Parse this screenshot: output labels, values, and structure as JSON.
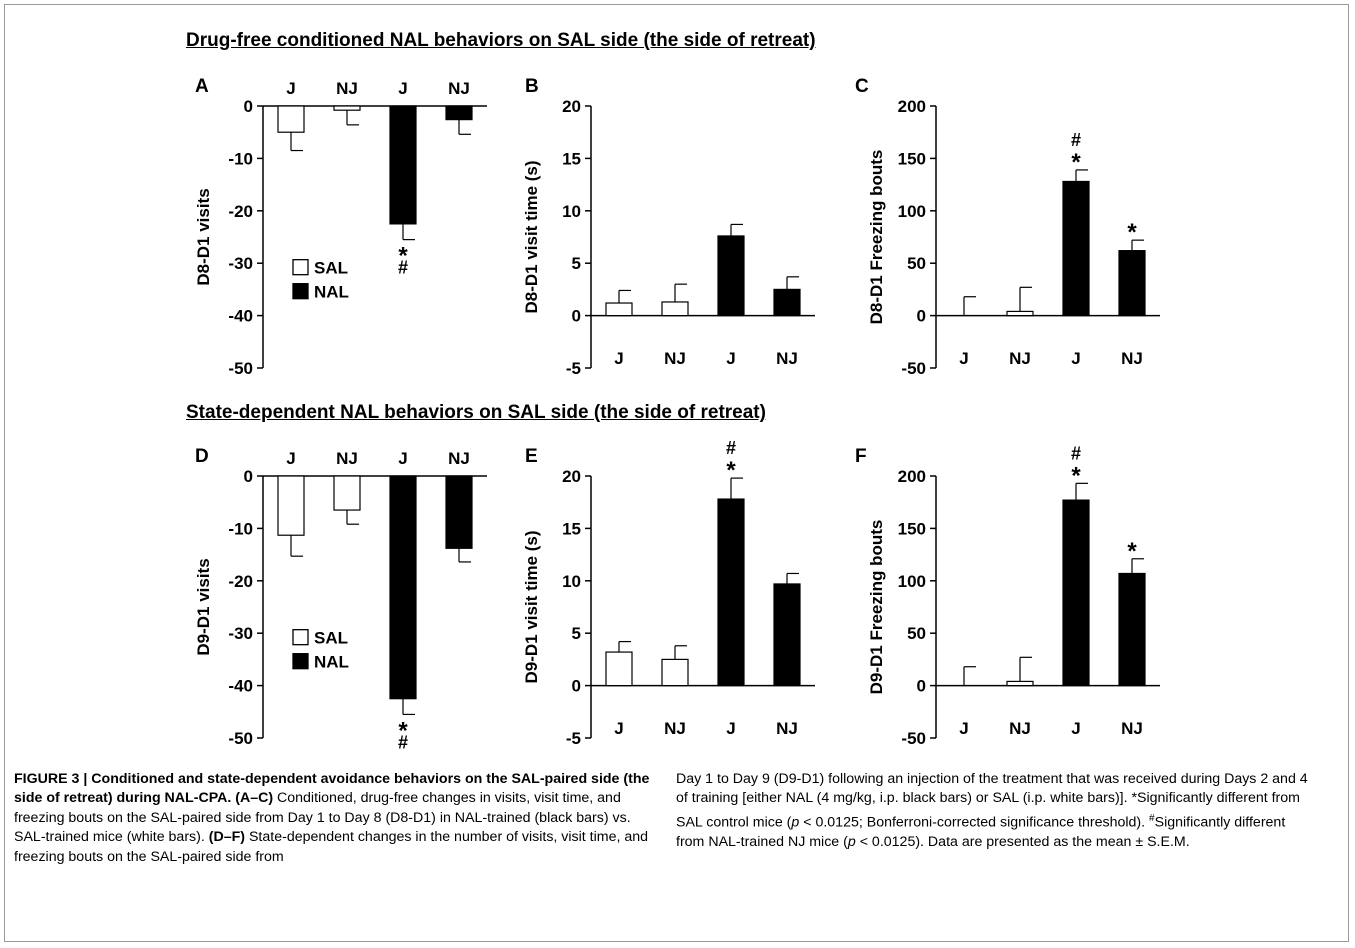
{
  "section_titles": {
    "top": "Drug-free conditioned NAL behaviors on SAL side (the side of retreat)",
    "bottom": "State-dependent NAL behaviors on SAL side (the side of retreat)"
  },
  "legend": {
    "sal": "SAL",
    "nal": "NAL"
  },
  "colors": {
    "sal": "#ffffff",
    "nal": "#000000",
    "stroke": "#000000"
  },
  "chart_data": [
    {
      "panel": "A",
      "type": "bar",
      "ylabel": "D8-D1 visits",
      "categories": [
        "J",
        "NJ",
        "J",
        "NJ"
      ],
      "groups": [
        "SAL",
        "SAL",
        "NAL",
        "NAL"
      ],
      "values": [
        -5,
        -0.8,
        -22.5,
        -2.6
      ],
      "errors": [
        3.5,
        2.8,
        3.0,
        2.8
      ],
      "ylim": [
        -50,
        0
      ],
      "yticks": [
        0,
        -10,
        -20,
        -30,
        -40,
        -50
      ],
      "category_labels_position": "top",
      "annotations": [
        "",
        "",
        "*#",
        ""
      ],
      "legend": "inside-bottom-left"
    },
    {
      "panel": "B",
      "type": "bar",
      "ylabel": "D8-D1 visit time (s)",
      "categories": [
        "J",
        "NJ",
        "J",
        "NJ"
      ],
      "groups": [
        "SAL",
        "SAL",
        "NAL",
        "NAL"
      ],
      "values": [
        1.2,
        1.3,
        7.6,
        2.5
      ],
      "errors": [
        1.2,
        1.7,
        1.1,
        1.2
      ],
      "ylim": [
        -5,
        20
      ],
      "yticks": [
        -5,
        0,
        5,
        10,
        15,
        20
      ],
      "category_labels_position": "bottom",
      "annotations": [
        "",
        "",
        "",
        ""
      ]
    },
    {
      "panel": "C",
      "type": "bar",
      "ylabel": "D8-D1 Freezing bouts",
      "categories": [
        "J",
        "NJ",
        "J",
        "NJ"
      ],
      "groups": [
        "SAL",
        "SAL",
        "NAL",
        "NAL"
      ],
      "values": [
        0,
        4,
        128,
        62
      ],
      "errors": [
        18,
        23,
        11,
        10
      ],
      "ylim": [
        -50,
        200
      ],
      "yticks": [
        -50,
        0,
        50,
        100,
        150,
        200
      ],
      "category_labels_position": "bottom",
      "annotations": [
        "",
        "",
        "#*",
        "*"
      ]
    },
    {
      "panel": "D",
      "type": "bar",
      "ylabel": "D9-D1 visits",
      "categories": [
        "J",
        "NJ",
        "J",
        "NJ"
      ],
      "groups": [
        "SAL",
        "SAL",
        "NAL",
        "NAL"
      ],
      "values": [
        -11.3,
        -6.5,
        -42.5,
        -13.8
      ],
      "errors": [
        4.0,
        2.7,
        3.0,
        2.6
      ],
      "ylim": [
        -50,
        0
      ],
      "yticks": [
        0,
        -10,
        -20,
        -30,
        -40,
        -50
      ],
      "category_labels_position": "top",
      "annotations": [
        "",
        "",
        "*#",
        ""
      ],
      "legend": "inside-bottom-left"
    },
    {
      "panel": "E",
      "type": "bar",
      "ylabel": "D9-D1 visit time (s)",
      "categories": [
        "J",
        "NJ",
        "J",
        "NJ"
      ],
      "groups": [
        "SAL",
        "SAL",
        "NAL",
        "NAL"
      ],
      "values": [
        3.2,
        2.5,
        17.8,
        9.7
      ],
      "errors": [
        1.0,
        1.3,
        2.0,
        1.0
      ],
      "ylim": [
        -5,
        20
      ],
      "yticks": [
        -5,
        0,
        5,
        10,
        15,
        20
      ],
      "category_labels_position": "bottom",
      "annotations": [
        "",
        "",
        "#*",
        ""
      ]
    },
    {
      "panel": "F",
      "type": "bar",
      "ylabel": "D9-D1 Freezing bouts",
      "categories": [
        "J",
        "NJ",
        "J",
        "NJ"
      ],
      "groups": [
        "SAL",
        "SAL",
        "NAL",
        "NAL"
      ],
      "values": [
        0,
        4,
        177,
        107
      ],
      "errors": [
        18,
        23,
        16,
        14
      ],
      "ylim": [
        -50,
        200
      ],
      "yticks": [
        -50,
        0,
        50,
        100,
        150,
        200
      ],
      "category_labels_position": "bottom",
      "annotations": [
        "",
        "",
        "#*",
        "*"
      ]
    }
  ],
  "caption": {
    "p1_head": "FIGURE 3 | Conditioned and state-dependent avoidance behaviors on the SAL-paired side (the side of retreat) during NAL-CPA. (A–C)",
    "p1_text": " Conditioned, drug-free changes in visits, visit time, and freezing bouts on the SAL-paired side from Day 1 to Day 8 (D8-D1) in NAL-trained (black bars) vs. SAL-trained mice (white bars). ",
    "p1_head2": "(D–F)",
    "p1_text2": " State-dependent changes in the number of visits, visit time, and freezing bouts on the SAL-paired side from",
    "p2_text1": "Day 1 to Day 9 (D9-D1) following an injection of the treatment that was received during Days 2 and 4 of training [either NAL (4 mg/kg, i.p. black bars) or SAL (i.p. white bars)]. *Significantly different from SAL control mice (",
    "p2_p1": "p",
    "p2_text2": " < 0.0125; Bonferroni-corrected significance threshold). ",
    "p2_hash": "#",
    "p2_text3": "Significantly different from NAL-trained NJ mice (",
    "p2_p2": "p",
    "p2_text4": " < 0.0125). Data are presented as the mean ± S.E.M."
  }
}
